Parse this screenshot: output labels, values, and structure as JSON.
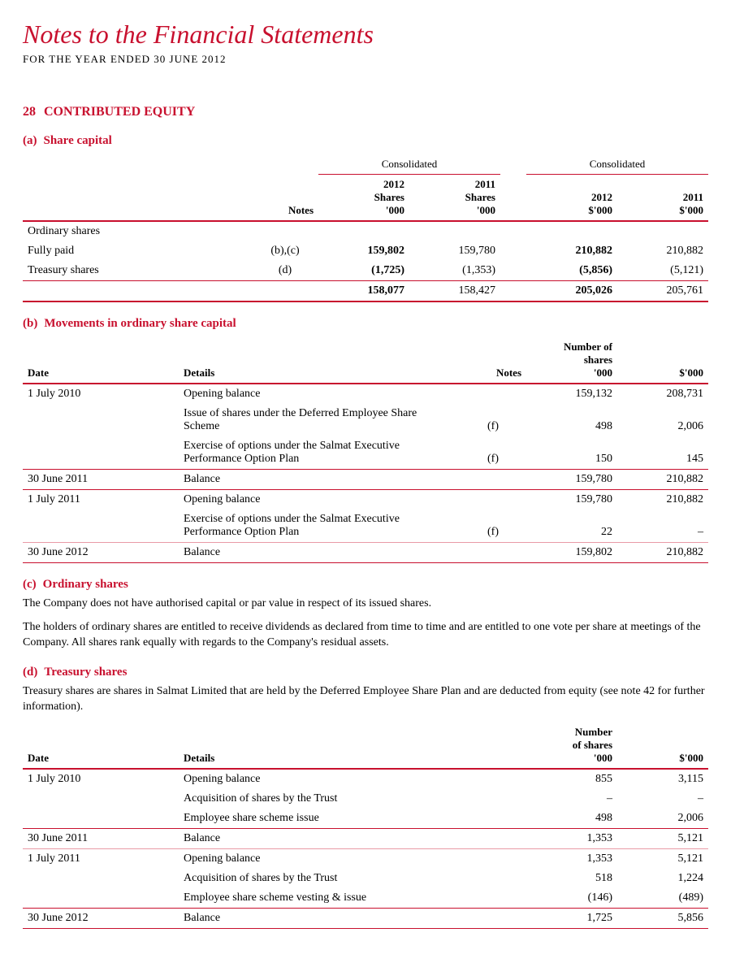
{
  "page": {
    "title": "Notes to the Financial Statements",
    "subtitle": "FOR THE YEAR ENDED 30 JUNE 2012"
  },
  "section": {
    "number": "28",
    "title": "CONTRIBUTED EQUITY"
  },
  "sub_a": {
    "letter": "(a)",
    "title": "Share capital",
    "consolidated_label": "Consolidated",
    "col_notes": "Notes",
    "col_2012_shares_l1": "2012",
    "col_2012_shares_l2": "Shares",
    "col_2012_shares_l3": "'000",
    "col_2011_shares_l1": "2011",
    "col_2011_shares_l2": "Shares",
    "col_2011_shares_l3": "'000",
    "col_2012_dollar_l1": "2012",
    "col_2012_dollar_l2": "$'000",
    "col_2011_dollar_l1": "2011",
    "col_2011_dollar_l2": "$'000",
    "rows": [
      {
        "label": "Ordinary shares",
        "notes": "",
        "s2012": "",
        "s2011": "",
        "d2012": "",
        "d2011": ""
      },
      {
        "label": "Fully paid",
        "notes": "(b),(c)",
        "s2012": "159,802",
        "s2011": "159,780",
        "d2012": "210,882",
        "d2011": "210,882"
      },
      {
        "label": "Treasury shares",
        "notes": "(d)",
        "s2012": "(1,725)",
        "s2011": "(1,353)",
        "d2012": "(5,856)",
        "d2011": "(5,121)"
      }
    ],
    "total": {
      "s2012": "158,077",
      "s2011": "158,427",
      "d2012": "205,026",
      "d2011": "205,761"
    }
  },
  "sub_b": {
    "letter": "(b)",
    "title": "Movements in ordinary share capital",
    "col_date": "Date",
    "col_details": "Details",
    "col_notes": "Notes",
    "col_shares_l1": "Number of",
    "col_shares_l2": "shares",
    "col_shares_l3": "'000",
    "col_dollar": "$'000",
    "rows": [
      {
        "date": "1 July 2010",
        "details": "Opening balance",
        "notes": "",
        "shares": "159,132",
        "dollar": "208,731",
        "rule": "none"
      },
      {
        "date": "",
        "details": "Issue of shares under the Deferred Employee Share Scheme",
        "notes": "(f)",
        "shares": "498",
        "dollar": "2,006",
        "rule": "none"
      },
      {
        "date": "",
        "details": "Exercise of options under the Salmat Executive Performance Option Plan",
        "notes": "(f)",
        "shares": "150",
        "dollar": "145",
        "rule": "thin"
      },
      {
        "date": "30 June 2011",
        "details": "Balance",
        "notes": "",
        "shares": "159,780",
        "dollar": "210,882",
        "rule": "thin"
      },
      {
        "date": "1 July 2011",
        "details": "Opening balance",
        "notes": "",
        "shares": "159,780",
        "dollar": "210,882",
        "rule": "none"
      },
      {
        "date": "",
        "details": "Exercise of options under the Salmat Executive Performance Option Plan",
        "notes": "(f)",
        "shares": "22",
        "dollar": "–",
        "rule": "light"
      },
      {
        "date": "30 June 2012",
        "details": "Balance",
        "notes": "",
        "shares": "159,802",
        "dollar": "210,882",
        "rule": "thin"
      }
    ]
  },
  "sub_c": {
    "letter": "(c)",
    "title": "Ordinary shares",
    "p1": "The Company does not have authorised capital or par value in respect of its issued shares.",
    "p2": "The holders of ordinary shares are entitled to receive dividends as declared from time to time and are entitled to one vote per share at meetings of the Company. All shares rank equally with regards to the Company's residual assets."
  },
  "sub_d": {
    "letter": "(d)",
    "title": "Treasury shares",
    "p1": "Treasury shares are shares in Salmat Limited that are held by the Deferred Employee Share Plan and are deducted from equity (see note 42 for further information).",
    "col_date": "Date",
    "col_details": "Details",
    "col_shares_l1": "Number",
    "col_shares_l2": "of shares",
    "col_shares_l3": "'000",
    "col_dollar": "$'000",
    "rows": [
      {
        "date": "1 July 2010",
        "details": "Opening balance",
        "shares": "855",
        "dollar": "3,115",
        "rule": "none"
      },
      {
        "date": "",
        "details": "Acquisition of shares by the Trust",
        "shares": "–",
        "dollar": "–",
        "rule": "none"
      },
      {
        "date": "",
        "details": "Employee share scheme issue",
        "shares": "498",
        "dollar": "2,006",
        "rule": "thin"
      },
      {
        "date": "30 June 2011",
        "details": "Balance",
        "shares": "1,353",
        "dollar": "5,121",
        "rule": "light"
      },
      {
        "date": "1 July 2011",
        "details": "Opening balance",
        "shares": "1,353",
        "dollar": "5,121",
        "rule": "none"
      },
      {
        "date": "",
        "details": "Acquisition of shares by the Trust",
        "shares": "518",
        "dollar": "1,224",
        "rule": "none"
      },
      {
        "date": "",
        "details": "Employee share scheme vesting & issue",
        "shares": "(146)",
        "dollar": "(489)",
        "rule": "thin"
      },
      {
        "date": "30 June 2012",
        "details": "Balance",
        "shares": "1,725",
        "dollar": "5,856",
        "rule": "thin"
      }
    ]
  }
}
